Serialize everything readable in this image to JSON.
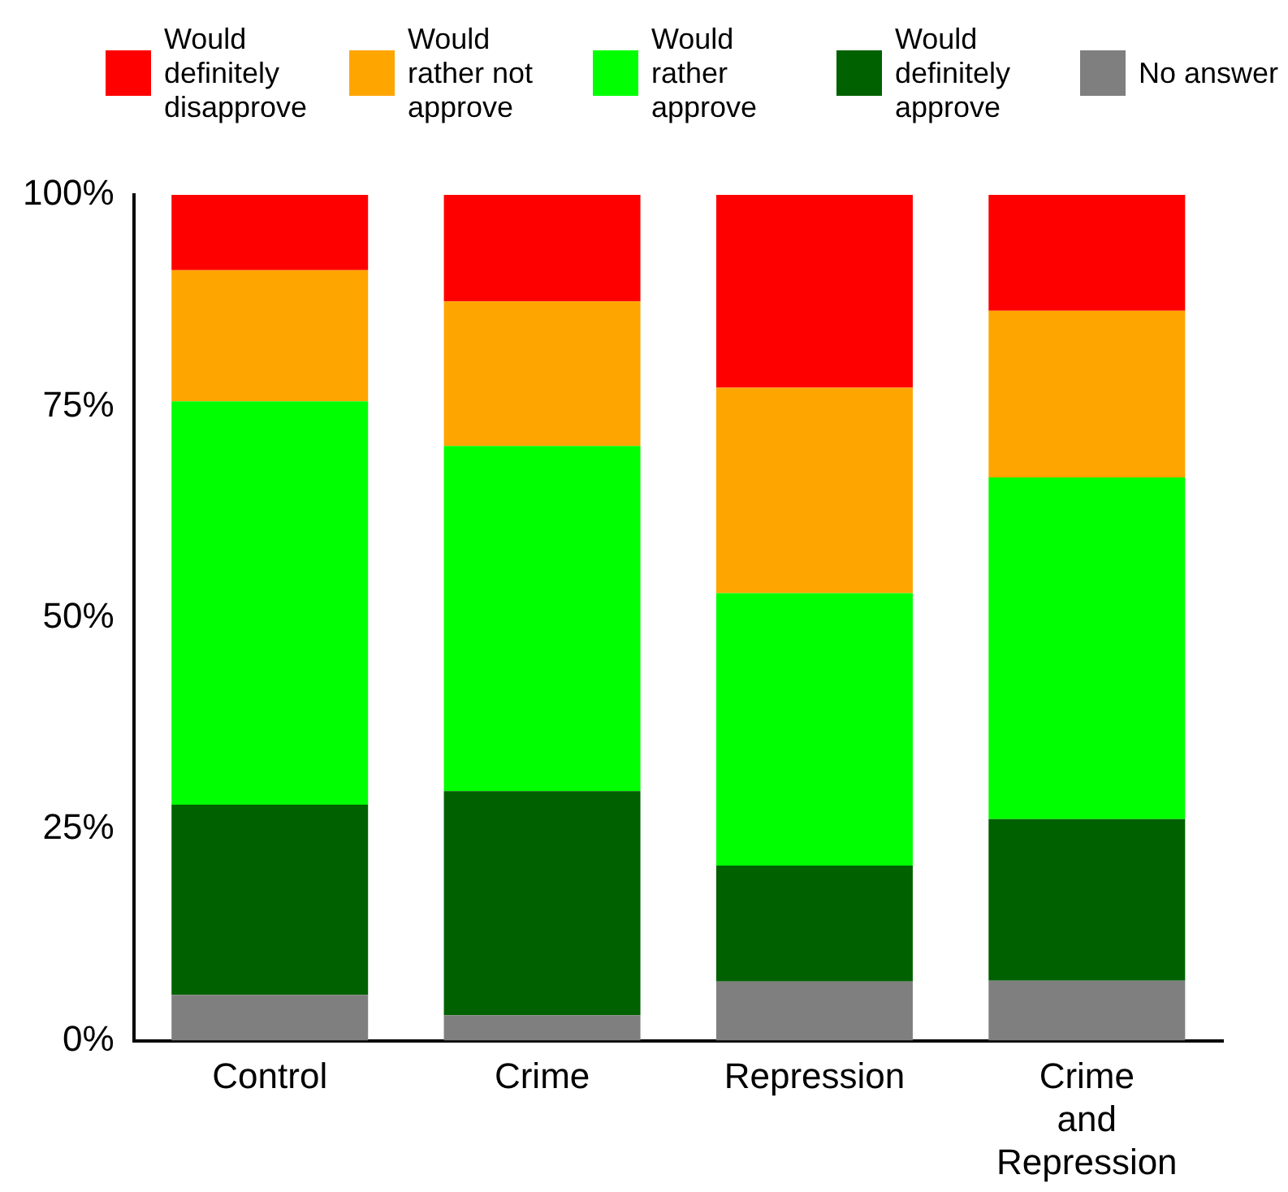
{
  "chart_data": {
    "type": "bar",
    "stacked": true,
    "categories": [
      "Control",
      "Crime",
      "Repression",
      "Crime and Repression"
    ],
    "series": [
      {
        "name": "No answer",
        "color": "#7f7f7f",
        "values": [
          5.4,
          3.0,
          7.0,
          7.1
        ]
      },
      {
        "name": "Would definitely approve",
        "color": "#006100",
        "values": [
          22.5,
          26.5,
          13.7,
          19.1
        ]
      },
      {
        "name": "Would rather approve",
        "color": "#00ff00",
        "values": [
          47.7,
          40.8,
          32.2,
          40.4
        ]
      },
      {
        "name": "Would rather not approve",
        "color": "#ffa500",
        "values": [
          15.5,
          17.1,
          24.3,
          19.7
        ]
      },
      {
        "name": "Would definitely disapprove",
        "color": "#ff0000",
        "values": [
          8.9,
          12.6,
          22.8,
          13.7
        ]
      }
    ],
    "ylim": [
      0,
      100
    ],
    "yticks": [
      {
        "value": 0,
        "label": "0%"
      },
      {
        "value": 25,
        "label": "25%"
      },
      {
        "value": 50,
        "label": "50%"
      },
      {
        "value": 75,
        "label": "75%"
      },
      {
        "value": 100,
        "label": "100%"
      }
    ],
    "grid": false,
    "legend": "top"
  }
}
